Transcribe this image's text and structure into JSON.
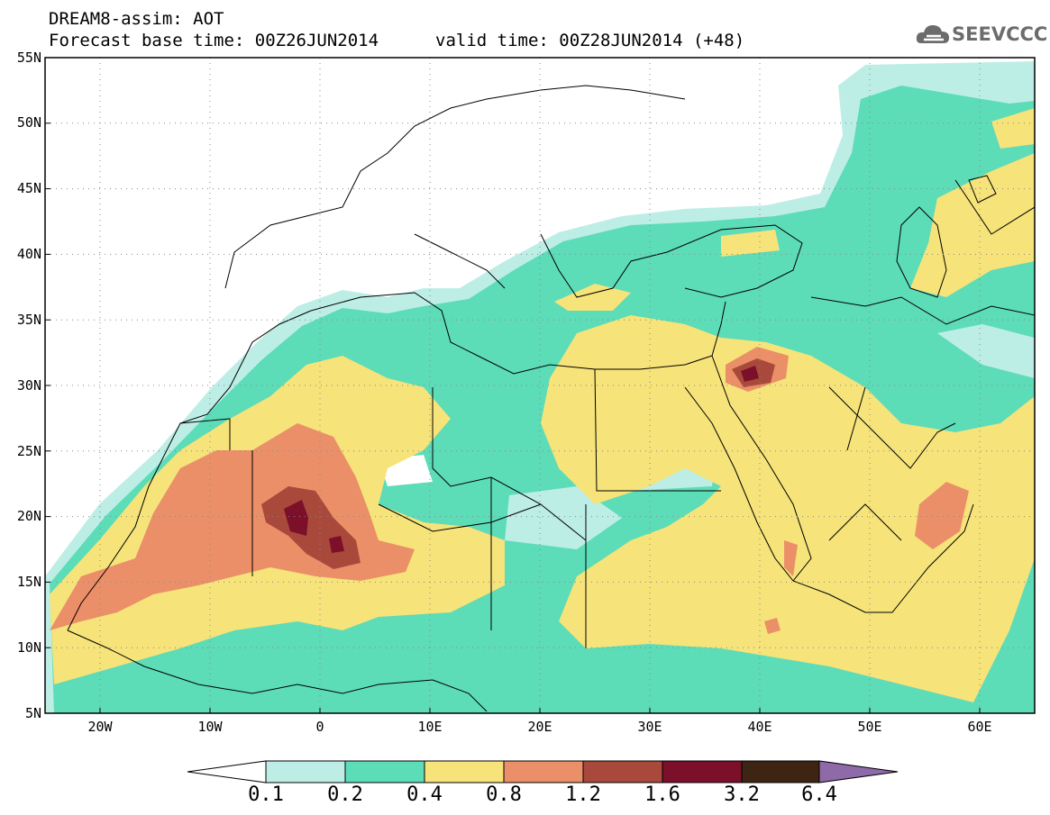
{
  "header": {
    "title": "DREAM8-assim: AOT",
    "base_time_line": "Forecast base time: 00Z26JUN2014",
    "valid_time_line": "valid time: 00Z28JUN2014 (+48)",
    "logo_text": "SEEVCCC"
  },
  "map": {
    "lon_range": [
      -25,
      65
    ],
    "lat_range": [
      5,
      55
    ],
    "grid": "dotted",
    "lat_labels": [
      "55N",
      "50N",
      "45N",
      "40N",
      "35N",
      "30N",
      "25N",
      "20N",
      "15N",
      "10N",
      "5N"
    ],
    "lon_labels": [
      "20W",
      "10W",
      "0",
      "10E",
      "20E",
      "30E",
      "40E",
      "50E",
      "60E"
    ]
  },
  "colorbar": {
    "levels": [
      "0.1",
      "0.2",
      "0.4",
      "0.8",
      "1.2",
      "1.6",
      "3.2",
      "6.4"
    ],
    "colors": [
      "#bdeee6",
      "#5ddcb8",
      "#f6e37a",
      "#eb8f69",
      "#a8493b",
      "#7c0f2a",
      "#3e2412",
      "#8f6aa8"
    ],
    "below_color": "#ffffff"
  }
}
